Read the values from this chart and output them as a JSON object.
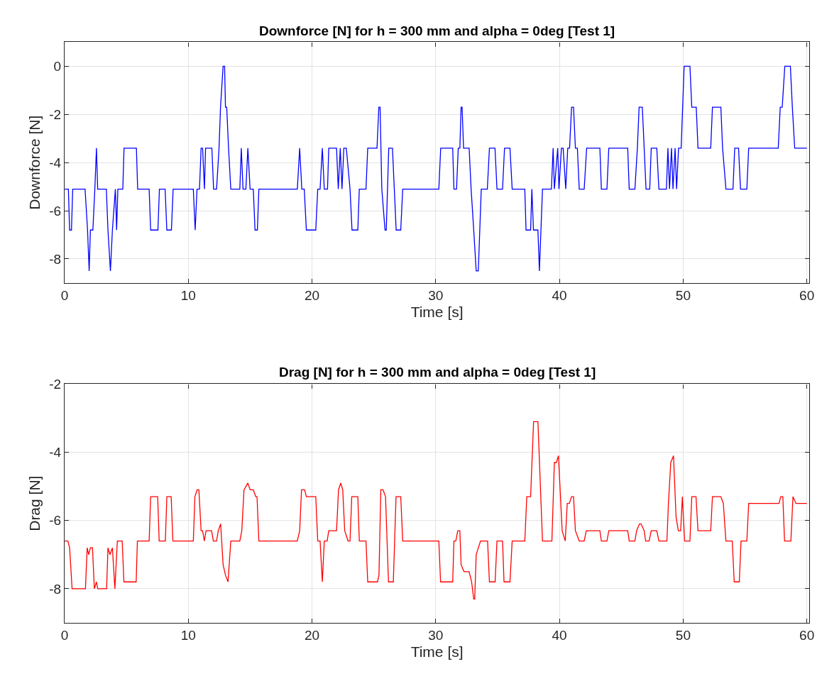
{
  "chart_data": [
    {
      "type": "line",
      "title": "Downforce [N] for h = 300 mm and alpha = 0deg [Test 1]",
      "xlabel": "Time [s]",
      "ylabel": "Downforce [N]",
      "xlim": [
        0,
        60.2
      ],
      "xticks": [
        0,
        10,
        20,
        30,
        40,
        50,
        60
      ],
      "ylim": [
        -9,
        1
      ],
      "yticks": [
        -8,
        -6,
        -4,
        -2,
        0
      ],
      "grid": true,
      "series": [
        {
          "color": "#0000ff",
          "x": [
            0,
            0.3,
            0.4,
            0.55,
            0.65,
            1.65,
            1.85,
            1.98,
            2.08,
            2.28,
            2.44,
            2.57,
            2.67,
            3.37,
            3.5,
            3.7,
            3.86,
            4.1,
            4.2,
            4.3,
            4.7,
            4.8,
            5.8,
            5.9,
            6.83,
            6.95,
            7.54,
            7.66,
            8.12,
            8.26,
            8.63,
            8.77,
            10.4,
            10.55,
            10.7,
            10.9,
            11.03,
            11.15,
            11.3,
            11.39,
            11.9,
            12.04,
            12.28,
            12.48,
            12.6,
            12.81,
            12.93,
            13.0,
            13.1,
            13.25,
            13.43,
            14.16,
            14.28,
            14.42,
            14.65,
            14.81,
            14.99,
            15.25,
            15.39,
            15.58,
            15.7,
            18.81,
            19.0,
            19.17,
            19.37,
            19.54,
            20.3,
            20.46,
            20.65,
            20.83,
            20.99,
            21.25,
            21.35,
            21.98,
            22.12,
            22.28,
            22.42,
            22.57,
            22.77,
            23.07,
            23.23,
            23.7,
            23.82,
            24.36,
            24.5,
            25.25,
            25.4,
            25.5,
            25.64,
            25.9,
            26.0,
            26.2,
            26.5,
            26.8,
            27.17,
            27.33,
            30.25,
            30.4,
            31.37,
            31.47,
            31.68,
            31.82,
            31.95,
            32.05,
            32.13,
            32.25,
            32.7,
            32.86,
            33.07,
            33.27,
            33.44,
            33.68,
            34.17,
            34.34,
            34.79,
            34.95,
            35.4,
            35.56,
            36.0,
            36.18,
            37.2,
            37.3,
            37.67,
            37.77,
            37.9,
            38.26,
            38.38,
            38.63,
            39.35,
            39.49,
            39.59,
            39.86,
            39.96,
            40.16,
            40.3,
            40.51,
            40.67,
            40.82,
            40.98,
            41.14,
            41.29,
            41.45,
            41.6,
            42.0,
            42.2,
            43.27,
            43.39,
            43.84,
            43.99,
            45.52,
            45.64,
            46.1,
            46.3,
            46.44,
            46.7,
            46.85,
            47.0,
            47.3,
            47.42,
            47.87,
            48.04,
            48.65,
            48.77,
            48.9,
            49.06,
            49.18,
            49.35,
            49.47,
            49.63,
            49.84,
            50.08,
            50.55,
            50.7,
            51.06,
            51.2,
            52.23,
            52.37,
            53.05,
            53.19,
            53.46,
            54.03,
            54.17,
            54.48,
            54.64,
            55.15,
            55.3,
            57.69,
            57.85,
            58.01,
            58.22,
            58.67,
            58.83,
            59.02,
            60.0
          ],
          "values": [
            -5.1,
            -5.1,
            -6.8,
            -6.8,
            -5.1,
            -5.1,
            -6.8,
            -8.5,
            -6.8,
            -6.8,
            -5.1,
            -3.4,
            -5.1,
            -5.1,
            -6.8,
            -8.5,
            -6.8,
            -5.1,
            -6.8,
            -5.1,
            -5.1,
            -3.4,
            -3.4,
            -5.1,
            -5.1,
            -6.8,
            -6.8,
            -5.1,
            -5.1,
            -6.8,
            -6.8,
            -5.1,
            -5.1,
            -6.8,
            -5.1,
            -5.1,
            -3.4,
            -3.4,
            -5.1,
            -3.4,
            -3.4,
            -5.1,
            -5.1,
            -3.4,
            -1.7,
            0,
            0,
            -1.7,
            -1.7,
            -3.4,
            -5.1,
            -5.1,
            -3.4,
            -5.1,
            -5.1,
            -3.4,
            -5.1,
            -5.1,
            -6.8,
            -6.8,
            -5.1,
            -5.1,
            -3.4,
            -5.1,
            -5.1,
            -6.8,
            -6.8,
            -5.1,
            -5.1,
            -3.4,
            -5.1,
            -5.1,
            -3.4,
            -3.4,
            -5.1,
            -3.4,
            -5.1,
            -3.4,
            -3.4,
            -5.1,
            -6.8,
            -6.8,
            -5.1,
            -5.1,
            -3.4,
            -3.4,
            -1.7,
            -1.7,
            -5.1,
            -6.8,
            -6.8,
            -3.4,
            -3.4,
            -6.8,
            -6.8,
            -5.1,
            -5.1,
            -3.4,
            -3.4,
            -5.1,
            -5.1,
            -3.4,
            -3.4,
            -1.7,
            -1.7,
            -3.4,
            -3.4,
            -5.1,
            -6.8,
            -8.5,
            -8.5,
            -5.1,
            -5.1,
            -3.4,
            -3.4,
            -5.1,
            -5.1,
            -3.4,
            -3.4,
            -5.1,
            -5.1,
            -6.8,
            -6.8,
            -5.1,
            -6.8,
            -6.8,
            -8.5,
            -5.1,
            -5.1,
            -3.4,
            -5.1,
            -3.4,
            -5.1,
            -3.4,
            -3.4,
            -5.1,
            -3.4,
            -3.4,
            -1.7,
            -1.7,
            -3.4,
            -3.4,
            -5.1,
            -5.1,
            -3.4,
            -3.4,
            -5.1,
            -5.1,
            -3.4,
            -3.4,
            -5.1,
            -5.1,
            -3.4,
            -1.7,
            -1.7,
            -3.4,
            -5.1,
            -5.1,
            -3.4,
            -3.4,
            -5.1,
            -5.1,
            -3.4,
            -5.1,
            -3.4,
            -5.1,
            -3.4,
            -5.1,
            -3.4,
            -3.4,
            0,
            0,
            -1.7,
            -1.7,
            -3.4,
            -3.4,
            -1.7,
            -1.7,
            -3.4,
            -5.1,
            -5.1,
            -3.4,
            -3.4,
            -5.1,
            -5.1,
            -3.4,
            -3.4,
            -1.7,
            -1.7,
            0,
            0,
            -1.7,
            -3.4,
            -3.4
          ]
        }
      ]
    },
    {
      "type": "line",
      "title": "Drag [N] for h = 300 mm and alpha = 0deg [Test 1]",
      "xlabel": "Time [s]",
      "ylabel": "Drag [N]",
      "xlim": [
        0,
        60.2
      ],
      "xticks": [
        0,
        10,
        20,
        30,
        40,
        50,
        60
      ],
      "ylim": [
        -9,
        -2
      ],
      "yticks": [
        -8,
        -6,
        -4,
        -2
      ],
      "grid": true,
      "series": [
        {
          "color": "#ff0000",
          "x": [
            0,
            0.26,
            0.4,
            0.6,
            1.68,
            1.82,
            1.94,
            2.08,
            2.25,
            2.4,
            2.57,
            2.67,
            3.39,
            3.5,
            3.66,
            3.86,
            4.06,
            4.26,
            4.65,
            4.79,
            5.78,
            5.88,
            6.83,
            6.95,
            7.52,
            7.64,
            8.14,
            8.26,
            8.61,
            8.75,
            10.4,
            10.53,
            10.71,
            10.85,
            11.03,
            11.15,
            11.29,
            11.43,
            11.88,
            12.02,
            12.28,
            12.42,
            12.61,
            12.81,
            13.0,
            13.21,
            13.43,
            14.16,
            14.32,
            14.5,
            14.81,
            14.99,
            15.25,
            15.45,
            15.55,
            15.7,
            18.81,
            19.0,
            19.15,
            19.4,
            19.54,
            20.3,
            20.46,
            20.65,
            20.83,
            20.99,
            21.22,
            21.35,
            21.98,
            22.14,
            22.32,
            22.48,
            22.64,
            22.91,
            23.07,
            23.21,
            23.7,
            23.82,
            24.36,
            24.5,
            25.29,
            25.41,
            25.56,
            25.74,
            25.94,
            26.18,
            26.57,
            26.79,
            27.17,
            27.33,
            30.25,
            30.39,
            31.37,
            31.47,
            31.62,
            31.78,
            31.95,
            32.05,
            32.29,
            32.7,
            32.9,
            33.07,
            33.15,
            33.27,
            33.62,
            34.19,
            34.34,
            34.8,
            34.95,
            35.4,
            35.52,
            36.0,
            36.18,
            37.2,
            37.36,
            37.67,
            37.91,
            38.26,
            38.63,
            39.39,
            39.59,
            39.75,
            39.92,
            40.22,
            40.47,
            40.63,
            40.8,
            40.98,
            41.14,
            41.29,
            41.6,
            42.0,
            42.17,
            43.27,
            43.39,
            43.84,
            43.99,
            45.52,
            45.64,
            46.1,
            46.24,
            46.47,
            46.6,
            46.85,
            46.97,
            47.25,
            47.42,
            47.87,
            48.04,
            48.69,
            48.81,
            49.0,
            49.22,
            49.43,
            49.61,
            49.8,
            49.94,
            50.12,
            50.55,
            50.7,
            51.04,
            51.2,
            52.23,
            52.37,
            53.05,
            53.25,
            53.46,
            53.97,
            54.13,
            54.54,
            54.68,
            55.15,
            55.3,
            57.75,
            57.89,
            58.06,
            58.2,
            58.71,
            58.88,
            59.12,
            60.0
          ],
          "values": [
            -6.6,
            -6.6,
            -6.8,
            -8.0,
            -8.0,
            -6.8,
            -7.0,
            -6.8,
            -6.8,
            -8.0,
            -7.8,
            -8.0,
            -8.0,
            -6.8,
            -7.0,
            -6.8,
            -8.0,
            -6.6,
            -6.6,
            -7.8,
            -7.8,
            -6.6,
            -6.6,
            -5.3,
            -5.3,
            -6.6,
            -6.6,
            -5.3,
            -5.3,
            -6.6,
            -6.6,
            -5.3,
            -5.1,
            -5.1,
            -6.3,
            -6.3,
            -6.6,
            -6.3,
            -6.3,
            -6.6,
            -6.6,
            -6.3,
            -6.1,
            -7.3,
            -7.6,
            -7.8,
            -6.6,
            -6.6,
            -6.3,
            -5.1,
            -4.9,
            -5.1,
            -5.1,
            -5.3,
            -5.3,
            -6.6,
            -6.6,
            -6.3,
            -5.1,
            -5.1,
            -5.3,
            -5.3,
            -6.6,
            -6.6,
            -7.8,
            -6.6,
            -6.6,
            -6.3,
            -6.3,
            -5.1,
            -4.9,
            -5.1,
            -6.3,
            -6.6,
            -6.6,
            -5.3,
            -5.3,
            -6.6,
            -6.6,
            -7.8,
            -7.8,
            -7.6,
            -5.1,
            -5.1,
            -5.3,
            -7.8,
            -7.8,
            -5.3,
            -5.3,
            -6.6,
            -6.6,
            -7.8,
            -7.8,
            -6.6,
            -6.6,
            -6.3,
            -6.3,
            -7.3,
            -7.5,
            -7.5,
            -7.8,
            -8.3,
            -8.3,
            -7.0,
            -6.6,
            -6.6,
            -7.8,
            -7.8,
            -6.6,
            -6.6,
            -7.8,
            -7.8,
            -6.6,
            -6.6,
            -5.3,
            -5.3,
            -3.1,
            -3.1,
            -6.6,
            -6.6,
            -4.3,
            -4.3,
            -4.1,
            -6.3,
            -6.6,
            -5.5,
            -5.5,
            -5.3,
            -5.3,
            -6.3,
            -6.6,
            -6.6,
            -6.3,
            -6.3,
            -6.6,
            -6.6,
            -6.3,
            -6.3,
            -6.6,
            -6.6,
            -6.3,
            -6.1,
            -6.1,
            -6.3,
            -6.6,
            -6.6,
            -6.3,
            -6.3,
            -6.6,
            -6.6,
            -5.5,
            -4.3,
            -4.1,
            -5.9,
            -6.3,
            -6.3,
            -5.3,
            -6.6,
            -6.6,
            -5.3,
            -5.3,
            -6.3,
            -6.3,
            -5.3,
            -5.3,
            -5.5,
            -6.6,
            -6.6,
            -7.8,
            -7.8,
            -6.6,
            -6.6,
            -5.5,
            -5.5,
            -5.3,
            -5.3,
            -6.6,
            -6.6,
            -5.3,
            -5.5,
            -5.5
          ]
        }
      ]
    }
  ]
}
